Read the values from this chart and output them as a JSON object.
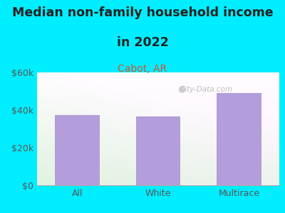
{
  "title_line1": "Median non-family household income",
  "title_line2": "in 2022",
  "subtitle": "Cabot, AR",
  "categories": [
    "All",
    "White",
    "Multirace"
  ],
  "values": [
    37500,
    36500,
    49000
  ],
  "bar_color": "#b39ddb",
  "title_fontsize": 12.5,
  "subtitle_fontsize": 10,
  "subtitle_color": "#cc5533",
  "background_outer": "#00eeff",
  "ylim": [
    0,
    60000
  ],
  "yticks": [
    0,
    20000,
    40000,
    60000
  ],
  "ytick_labels": [
    "$0",
    "$20k",
    "$40k",
    "$60k"
  ],
  "watermark": "City-Data.com",
  "tick_color": "#555555"
}
